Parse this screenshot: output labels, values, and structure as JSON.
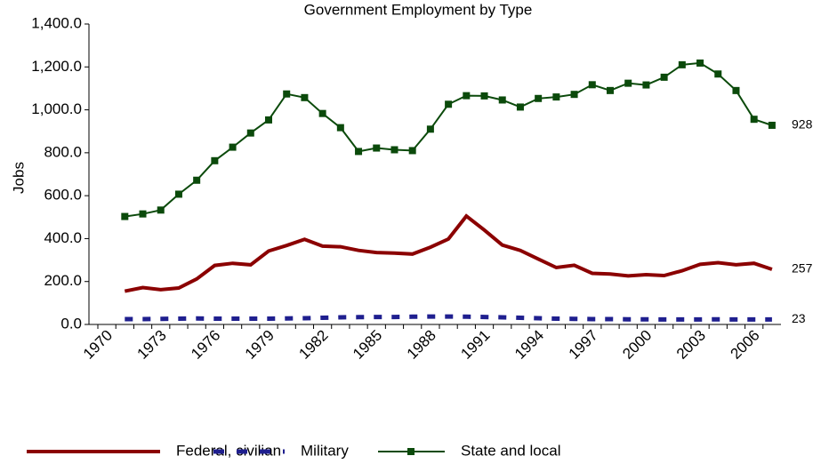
{
  "chart_data": {
    "type": "line",
    "title": "Government Employment by Type",
    "y_label": "Jobs",
    "categories": [
      "1970",
      null,
      null,
      "1973",
      null,
      null,
      "1976",
      null,
      null,
      "1979",
      null,
      null,
      "1982",
      null,
      null,
      "1985",
      null,
      null,
      "1988",
      null,
      null,
      "1991",
      null,
      null,
      "1994",
      null,
      null,
      "1997",
      null,
      null,
      "2000",
      null,
      null,
      "2003",
      null,
      null,
      "2006",
      null
    ],
    "series": [
      {
        "name": "Federal, civilian",
        "color": "#8b0000",
        "style": "solid",
        "values": [
          null,
          155,
          172,
          162,
          170,
          212,
          275,
          285,
          278,
          342,
          368,
          397,
          365,
          362,
          345,
          335,
          332,
          328,
          360,
          398,
          505,
          440,
          370,
          345,
          305,
          265,
          276,
          238,
          235,
          226,
          232,
          228,
          250,
          280,
          288,
          278,
          285,
          257
        ]
      },
      {
        "name": "Military",
        "color": "#1f1f8f",
        "style": "dashed",
        "values": [
          null,
          25,
          25,
          26,
          27,
          28,
          27,
          27,
          27,
          27,
          28,
          29,
          31,
          33,
          34,
          35,
          35,
          36,
          37,
          37,
          36,
          35,
          33,
          31,
          29,
          27,
          26,
          25,
          25,
          24,
          24,
          23,
          23,
          23,
          24,
          23,
          23,
          23
        ]
      },
      {
        "name": "State and local",
        "color": "#0b4a0b",
        "style": "markers",
        "values": [
          null,
          503,
          515,
          533,
          607,
          672,
          763,
          826,
          892,
          953,
          1074,
          1057,
          983,
          917,
          806,
          822,
          814,
          810,
          910,
          1026,
          1066,
          1065,
          1046,
          1013,
          1053,
          1060,
          1072,
          1117,
          1090,
          1124,
          1116,
          1152,
          1210,
          1218,
          1167,
          1090,
          956,
          928
        ]
      }
    ],
    "ylim": [
      0,
      1400
    ],
    "yticks": [
      {
        "value": 0,
        "label": "0.0"
      },
      {
        "value": 200,
        "label": "200.0"
      },
      {
        "value": 400,
        "label": "400.0"
      },
      {
        "value": 600,
        "label": "600.0"
      },
      {
        "value": 800,
        "label": "800.0"
      },
      {
        "value": 1000,
        "label": "1,000.0"
      },
      {
        "value": 1200,
        "label": "1,200.0"
      },
      {
        "value": 1400,
        "label": "1,400.0"
      }
    ],
    "grid": false,
    "legend": "bottom"
  }
}
